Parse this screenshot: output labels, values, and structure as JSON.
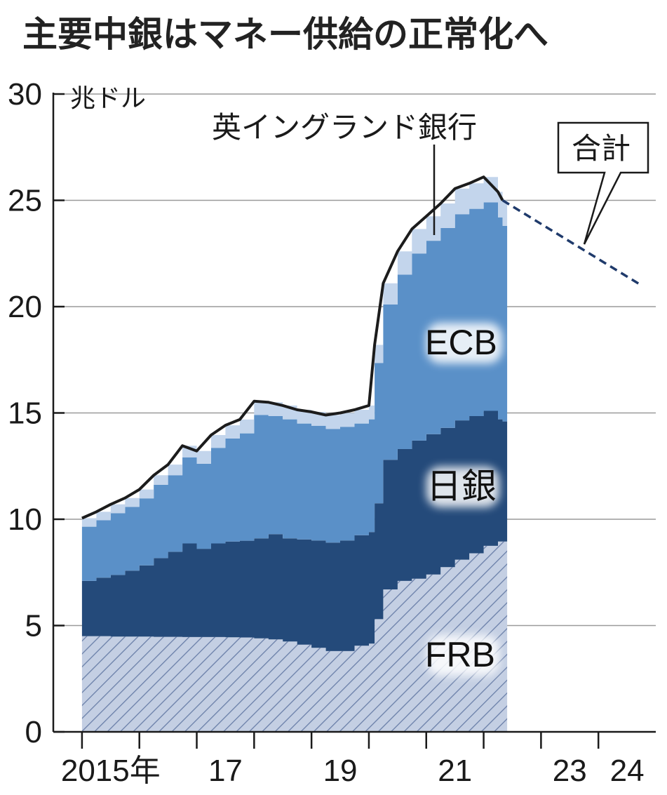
{
  "title": "主要中銀はマネー供給の正常化へ",
  "chart_data": {
    "type": "area",
    "stacked": true,
    "unit": "兆ドル",
    "yticks": [
      "0",
      "5",
      "10",
      "15",
      "20",
      "25",
      "30"
    ],
    "ylim": [
      0,
      30
    ],
    "xlim": [
      2014.5,
      2025.0
    ],
    "xticks": [
      {
        "label": "2015年",
        "value": 2015.5
      },
      {
        "label": "17",
        "value": 2017.5
      },
      {
        "label": "19",
        "value": 2019.5
      },
      {
        "label": "21",
        "value": 2021.5
      },
      {
        "label": "23",
        "value": 2023.5
      },
      {
        "label": "24",
        "value": 2024.5
      }
    ],
    "x_dividers": [
      2015,
      2016,
      2017,
      2018,
      2019,
      2020,
      2021,
      2022,
      2023,
      2024
    ],
    "grid": true,
    "series_labels": {
      "ecb": "ECB",
      "boj": "日銀",
      "frb": "FRB",
      "boe": "英イングランド銀行",
      "total": "合計"
    },
    "colors": {
      "frb": "#c4cfe3",
      "frb_hatch": "#6a7fa8",
      "boj": "#244a7a",
      "ecb": "#5a90c8",
      "boe": "#c3d5ec",
      "total_line": "#1c1c1c",
      "projection": "#1f3a6b",
      "grid": "#9a9a9a"
    },
    "x": [
      2015.0,
      2015.25,
      2015.5,
      2015.75,
      2016.0,
      2016.25,
      2016.5,
      2016.75,
      2017.0,
      2017.25,
      2017.5,
      2017.75,
      2018.0,
      2018.25,
      2018.5,
      2018.75,
      2019.0,
      2019.25,
      2019.5,
      2019.75,
      2020.0,
      2020.1,
      2020.25,
      2020.5,
      2020.75,
      2021.0,
      2021.25,
      2021.5,
      2021.75,
      2022.0,
      2022.25,
      2022.33
    ],
    "series": [
      {
        "key": "frb",
        "values": [
          4.5,
          4.5,
          4.48,
          4.48,
          4.48,
          4.47,
          4.47,
          4.46,
          4.46,
          4.46,
          4.45,
          4.44,
          4.4,
          4.35,
          4.25,
          4.1,
          3.95,
          3.8,
          3.8,
          4.05,
          4.15,
          5.3,
          6.7,
          7.1,
          7.2,
          7.4,
          7.75,
          8.1,
          8.4,
          8.75,
          8.95,
          8.95
        ]
      },
      {
        "key": "boj",
        "values": [
          2.6,
          2.75,
          2.9,
          3.1,
          3.35,
          3.7,
          4.0,
          4.4,
          4.15,
          4.4,
          4.5,
          4.55,
          4.7,
          4.95,
          4.85,
          4.95,
          5.05,
          5.1,
          5.2,
          5.2,
          5.25,
          5.45,
          6.1,
          6.2,
          6.5,
          6.6,
          6.55,
          6.55,
          6.45,
          6.35,
          5.75,
          5.65
        ]
      },
      {
        "key": "ecb",
        "values": [
          2.55,
          2.7,
          2.9,
          3.0,
          3.15,
          3.45,
          3.6,
          4.05,
          4.0,
          4.5,
          4.85,
          5.05,
          5.8,
          5.55,
          5.6,
          5.45,
          5.4,
          5.35,
          5.35,
          5.25,
          5.3,
          6.6,
          7.3,
          8.2,
          8.8,
          9.1,
          9.4,
          9.7,
          9.75,
          9.8,
          9.5,
          9.2
        ]
      },
      {
        "key": "boe",
        "values": [
          0.4,
          0.4,
          0.42,
          0.42,
          0.42,
          0.45,
          0.5,
          0.55,
          0.6,
          0.6,
          0.62,
          0.65,
          0.65,
          0.65,
          0.65,
          0.65,
          0.65,
          0.65,
          0.65,
          0.65,
          0.65,
          0.85,
          1.0,
          1.1,
          1.15,
          1.15,
          1.15,
          1.2,
          1.2,
          1.2,
          1.2,
          1.2
        ]
      }
    ],
    "total": {
      "x": [
        2015.0,
        2015.25,
        2015.5,
        2015.75,
        2016.0,
        2016.25,
        2016.5,
        2016.75,
        2017.0,
        2017.25,
        2017.5,
        2017.75,
        2018.0,
        2018.25,
        2018.5,
        2018.75,
        2019.0,
        2019.25,
        2019.5,
        2019.75,
        2020.0,
        2020.1,
        2020.25,
        2020.5,
        2020.75,
        2021.0,
        2021.25,
        2021.5,
        2021.75,
        2022.0,
        2022.25,
        2022.33
      ],
      "values": [
        10.05,
        10.35,
        10.7,
        11.0,
        11.4,
        12.07,
        12.57,
        13.46,
        13.21,
        13.96,
        14.42,
        14.69,
        15.55,
        15.5,
        15.35,
        15.15,
        15.05,
        14.9,
        15.0,
        15.15,
        15.35,
        18.2,
        21.1,
        22.6,
        23.65,
        24.25,
        24.85,
        25.55,
        25.8,
        26.1,
        25.4,
        25.0
      ]
    },
    "projection": {
      "x": [
        2022.33,
        2024.75
      ],
      "values": [
        25.0,
        21.0
      ],
      "style": "dashed"
    }
  }
}
